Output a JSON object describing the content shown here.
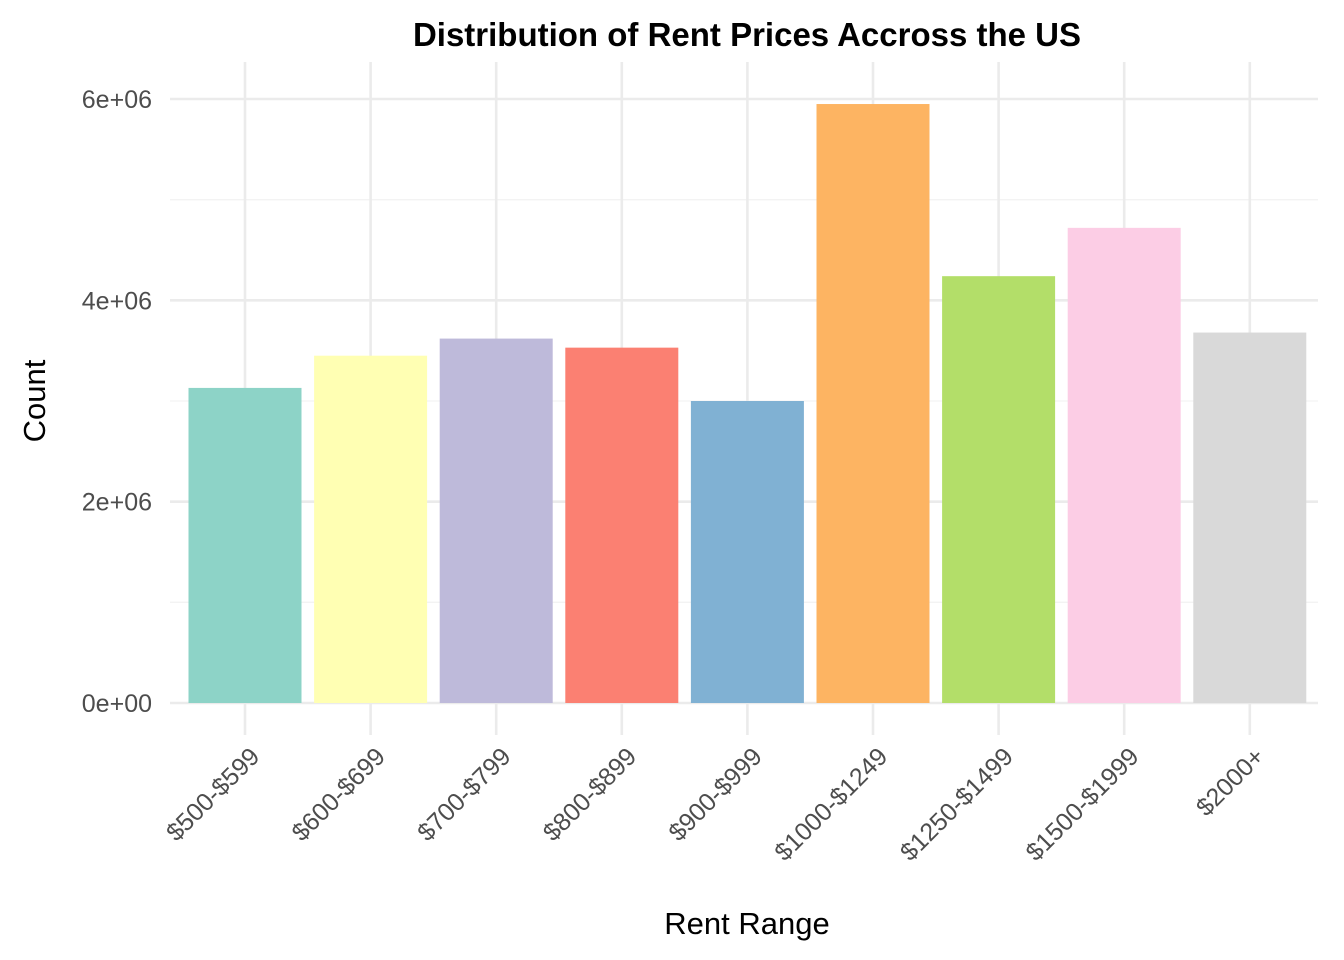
{
  "chart_data": {
    "type": "bar",
    "title": "Distribution of Rent Prices Accross the US",
    "xlabel": "Rent Range",
    "ylabel": "Count",
    "categories": [
      "$500-$599",
      "$600-$699",
      "$700-$799",
      "$800-$899",
      "$900-$999",
      "$1000-$1249",
      "$1250-$1499",
      "$1500-$1999",
      "$2000+"
    ],
    "values": [
      3130000,
      3450000,
      3620000,
      3530000,
      3000000,
      5950000,
      4240000,
      4720000,
      3680000
    ],
    "colors": [
      "#8DD3C7",
      "#FFFFB3",
      "#BEBADA",
      "#FB8072",
      "#80B1D3",
      "#FDB462",
      "#B3DE69",
      "#FCCDE5",
      "#D9D9D9"
    ],
    "ylim": [
      0,
      6000000
    ],
    "yticks": [
      0,
      2000000,
      4000000,
      6000000
    ],
    "ytick_labels": [
      "0e+00",
      "2e+06",
      "4e+06",
      "6e+06"
    ],
    "grid": true,
    "legend": "none"
  }
}
